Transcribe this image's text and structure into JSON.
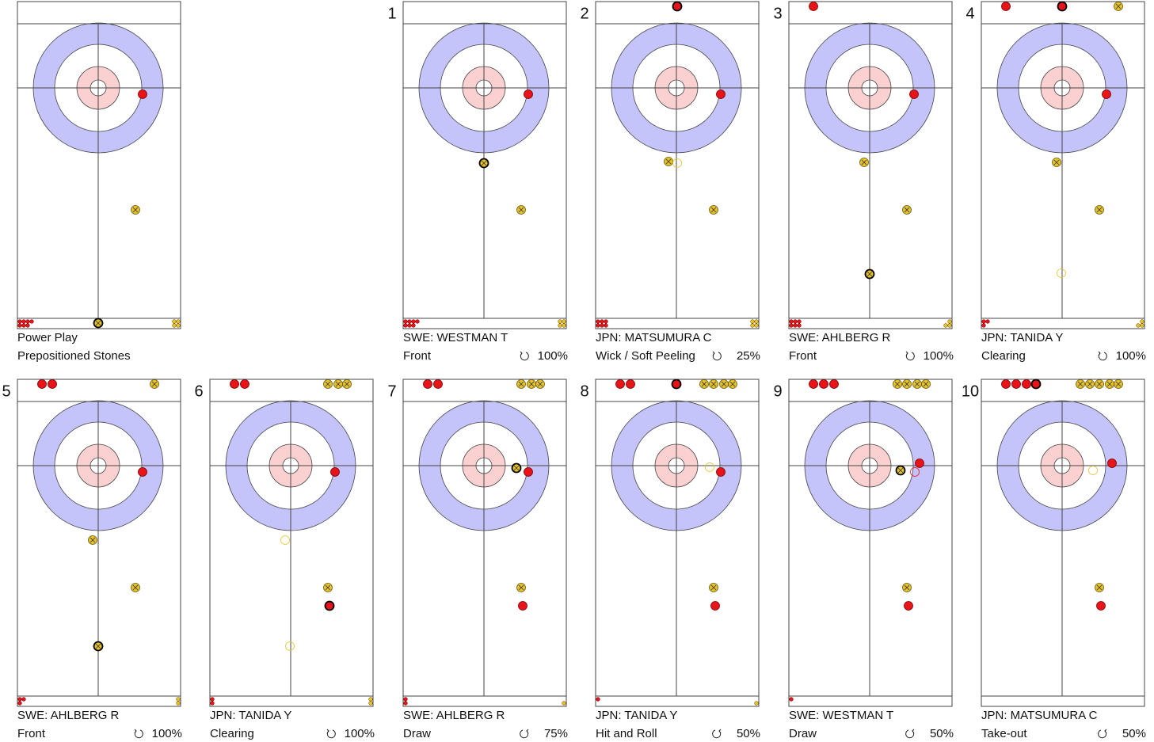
{
  "panels": [
    {
      "lines": [
        "Power Play",
        "Prepositioned Stones"
      ]
    },
    {
      "number": 1,
      "player": "SWE: WESTMAN T",
      "shot": "Front",
      "percent": "100%"
    },
    {
      "number": 2,
      "player": "JPN: MATSUMURA C",
      "shot": "Wick / Soft Peeling",
      "percent": "25%"
    },
    {
      "number": 3,
      "player": "SWE: AHLBERG R",
      "shot": "Front",
      "percent": "100%"
    },
    {
      "number": 4,
      "player": "JPN: TANIDA Y",
      "shot": "Clearing",
      "percent": "100%"
    },
    {
      "number": 5,
      "player": "SWE: AHLBERG R",
      "shot": "Front",
      "percent": "100%"
    },
    {
      "number": 6,
      "player": "JPN: TANIDA Y",
      "shot": "Clearing",
      "percent": "100%"
    },
    {
      "number": 7,
      "player": "SWE: AHLBERG R",
      "shot": "Draw",
      "percent": "75%"
    },
    {
      "number": 8,
      "player": "JPN: TANIDA Y",
      "shot": "Hit and Roll",
      "percent": "50%"
    },
    {
      "number": 9,
      "player": "SWE: WESTMAN T",
      "shot": "Draw",
      "percent": "50%"
    },
    {
      "number": 10,
      "player": "JPN: MATSUMURA C",
      "shot": "Take-out",
      "percent": "50%"
    }
  ]
}
